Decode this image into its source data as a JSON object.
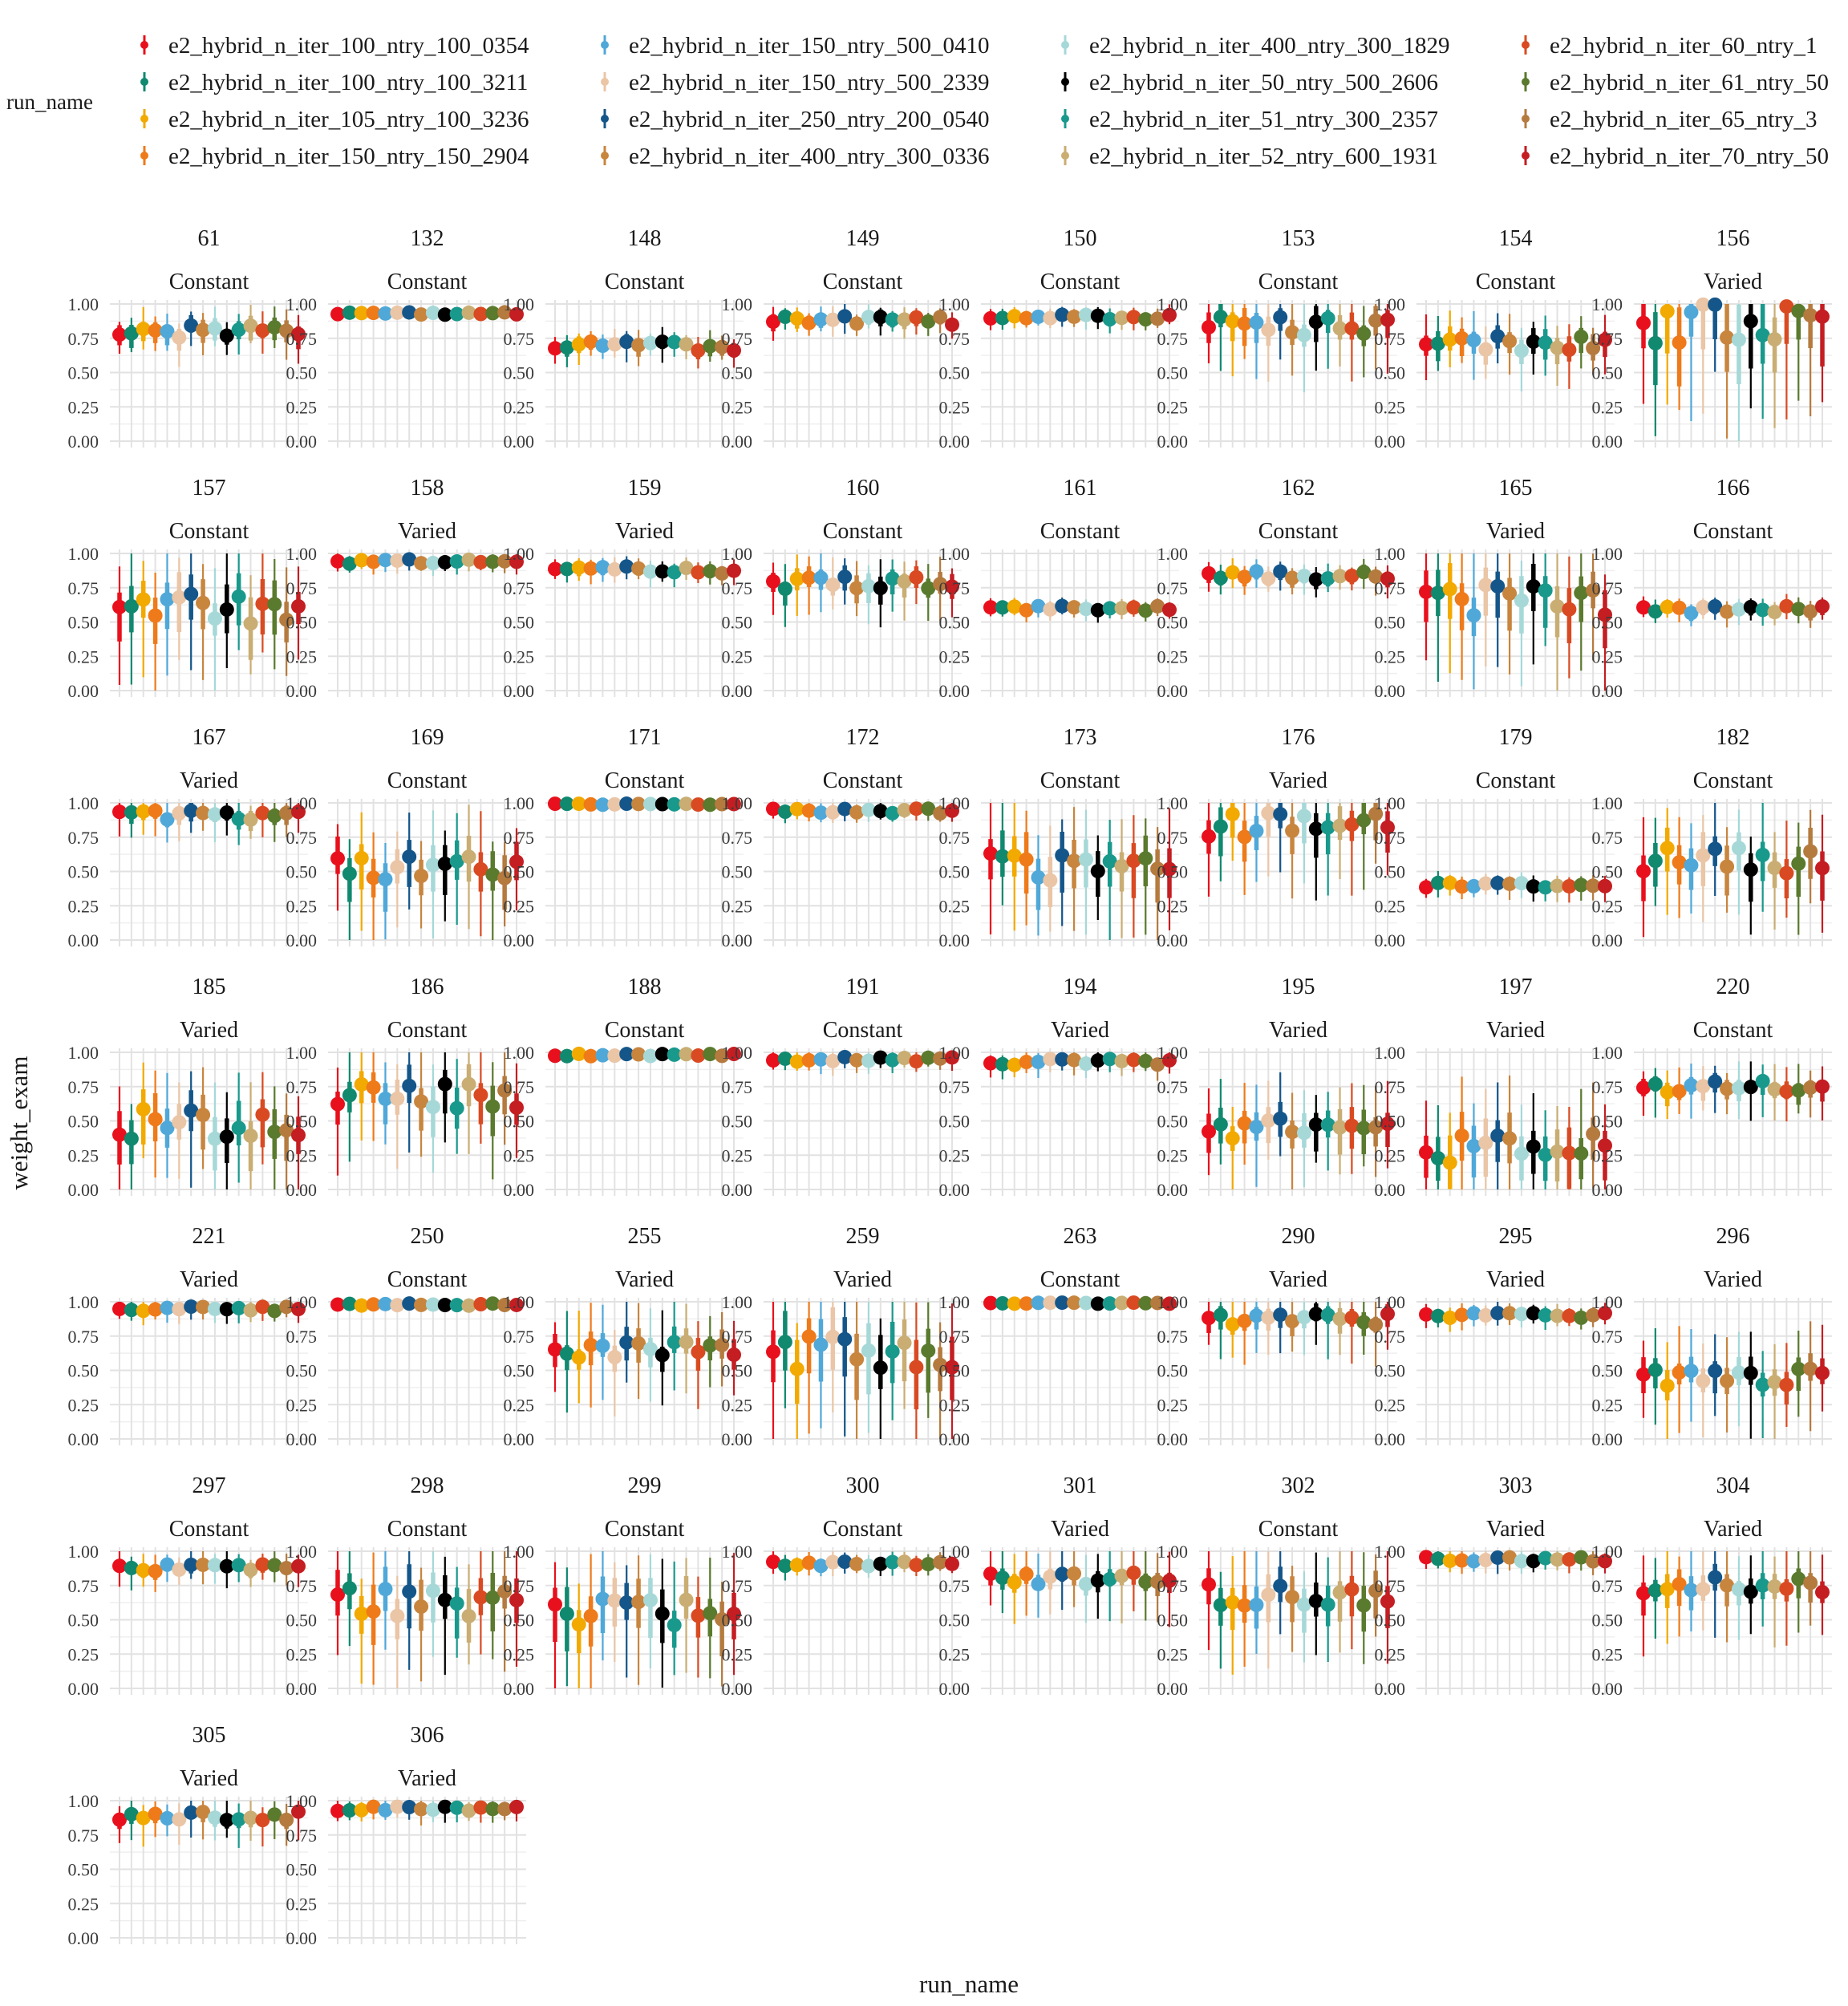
{
  "chart_data": {
    "type": "pointrange",
    "xlabel": "run_name",
    "ylabel": "weight_exam",
    "ylim": [
      0,
      1
    ],
    "yticks": [
      "0.00",
      "0.25",
      "0.50",
      "0.75",
      "1.00"
    ],
    "legend": {
      "title": "run_name",
      "placement": "top",
      "entries": [
        {
          "name": "e2_hybrid_n_iter_100_ntry_100_0354",
          "color": "#e8101c"
        },
        {
          "name": "e2_hybrid_n_iter_100_ntry_100_3211",
          "color": "#10896f"
        },
        {
          "name": "e2_hybrid_n_iter_105_ntry_100_3236",
          "color": "#f2a900"
        },
        {
          "name": "e2_hybrid_n_iter_150_ntry_150_2904",
          "color": "#ee7a1a"
        },
        {
          "name": "e2_hybrid_n_iter_150_ntry_500_0410",
          "color": "#4fa8d8"
        },
        {
          "name": "e2_hybrid_n_iter_150_ntry_500_2339",
          "color": "#eac5a6"
        },
        {
          "name": "e2_hybrid_n_iter_250_ntry_200_0540",
          "color": "#14568a"
        },
        {
          "name": "e2_hybrid_n_iter_400_ntry_300_0336",
          "color": "#c8853e"
        },
        {
          "name": "e2_hybrid_n_iter_400_ntry_300_1829",
          "color": "#a6d8d8"
        },
        {
          "name": "e2_hybrid_n_iter_50_ntry_500_2606",
          "color": "#000000"
        },
        {
          "name": "e2_hybrid_n_iter_51_ntry_300_2357",
          "color": "#19998c"
        },
        {
          "name": "e2_hybrid_n_iter_52_ntry_600_1931",
          "color": "#c9ad72"
        },
        {
          "name": "e2_hybrid_n_iter_60_ntry_1",
          "color": "#d94a22"
        },
        {
          "name": "e2_hybrid_n_iter_61_ntry_50",
          "color": "#5a7a2e"
        },
        {
          "name": "e2_hybrid_n_iter_65_ntry_3",
          "color": "#b57a3e"
        },
        {
          "name": "e2_hybrid_n_iter_70_ntry_50",
          "color": "#c41d22"
        }
      ]
    },
    "panels": [
      {
        "id": "61",
        "cond": "Constant",
        "m": 0.8,
        "w": 0.1,
        "l": 0.18
      },
      {
        "id": "132",
        "cond": "Constant",
        "m": 0.93,
        "w": 0.02,
        "l": 0.03
      },
      {
        "id": "148",
        "cond": "Constant",
        "m": 0.69,
        "w": 0.08,
        "l": 0.13
      },
      {
        "id": "149",
        "cond": "Constant",
        "m": 0.88,
        "w": 0.07,
        "l": 0.12
      },
      {
        "id": "150",
        "cond": "Constant",
        "m": 0.9,
        "w": 0.05,
        "l": 0.09
      },
      {
        "id": "153",
        "cond": "Constant",
        "m": 0.84,
        "w": 0.15,
        "l": 0.35
      },
      {
        "id": "154",
        "cond": "Constant",
        "m": 0.71,
        "w": 0.13,
        "l": 0.25
      },
      {
        "id": "156",
        "cond": "Varied",
        "m": 0.86,
        "w": 0.35,
        "l": 0.7
      },
      {
        "id": "157",
        "cond": "Constant",
        "m": 0.6,
        "w": 0.25,
        "l": 0.5
      },
      {
        "id": "158",
        "cond": "Varied",
        "m": 0.94,
        "w": 0.04,
        "l": 0.08
      },
      {
        "id": "159",
        "cond": "Varied",
        "m": 0.88,
        "w": 0.06,
        "l": 0.1
      },
      {
        "id": "160",
        "cond": "Constant",
        "m": 0.78,
        "w": 0.12,
        "l": 0.24
      },
      {
        "id": "161",
        "cond": "Constant",
        "m": 0.6,
        "w": 0.04,
        "l": 0.08
      },
      {
        "id": "162",
        "cond": "Constant",
        "m": 0.84,
        "w": 0.07,
        "l": 0.12
      },
      {
        "id": "165",
        "cond": "Varied",
        "m": 0.66,
        "w": 0.25,
        "l": 0.55
      },
      {
        "id": "166",
        "cond": "Constant",
        "m": 0.59,
        "w": 0.06,
        "l": 0.1
      },
      {
        "id": "167",
        "cond": "Varied",
        "m": 0.91,
        "w": 0.08,
        "l": 0.18
      },
      {
        "id": "169",
        "cond": "Constant",
        "m": 0.52,
        "w": 0.22,
        "l": 0.48
      },
      {
        "id": "171",
        "cond": "Constant",
        "m": 0.99,
        "w": 0.01,
        "l": 0.03
      },
      {
        "id": "172",
        "cond": "Constant",
        "m": 0.94,
        "w": 0.04,
        "l": 0.08
      },
      {
        "id": "173",
        "cond": "Constant",
        "m": 0.52,
        "w": 0.25,
        "l": 0.5
      },
      {
        "id": "176",
        "cond": "Varied",
        "m": 0.84,
        "w": 0.2,
        "l": 0.45
      },
      {
        "id": "179",
        "cond": "Constant",
        "m": 0.4,
        "w": 0.04,
        "l": 0.1
      },
      {
        "id": "182",
        "cond": "Constant",
        "m": 0.58,
        "w": 0.22,
        "l": 0.45
      },
      {
        "id": "185",
        "cond": "Varied",
        "m": 0.48,
        "w": 0.25,
        "l": 0.48
      },
      {
        "id": "186",
        "cond": "Constant",
        "m": 0.68,
        "w": 0.2,
        "l": 0.45
      },
      {
        "id": "188",
        "cond": "Constant",
        "m": 0.98,
        "w": 0.02,
        "l": 0.04
      },
      {
        "id": "191",
        "cond": "Constant",
        "m": 0.95,
        "w": 0.04,
        "l": 0.09
      },
      {
        "id": "194",
        "cond": "Varied",
        "m": 0.93,
        "w": 0.05,
        "l": 0.1
      },
      {
        "id": "195",
        "cond": "Varied",
        "m": 0.45,
        "w": 0.18,
        "l": 0.38
      },
      {
        "id": "197",
        "cond": "Varied",
        "m": 0.3,
        "w": 0.25,
        "l": 0.55
      },
      {
        "id": "220",
        "cond": "Constant",
        "m": 0.75,
        "w": 0.1,
        "l": 0.22
      },
      {
        "id": "221",
        "cond": "Varied",
        "m": 0.95,
        "w": 0.04,
        "l": 0.1
      },
      {
        "id": "250",
        "cond": "Constant",
        "m": 0.98,
        "w": 0.02,
        "l": 0.04
      },
      {
        "id": "255",
        "cond": "Varied",
        "m": 0.65,
        "w": 0.15,
        "l": 0.38
      },
      {
        "id": "259",
        "cond": "Varied",
        "m": 0.62,
        "w": 0.3,
        "l": 0.6
      },
      {
        "id": "263",
        "cond": "Constant",
        "m": 0.99,
        "w": 0.01,
        "l": 0.03
      },
      {
        "id": "290",
        "cond": "Varied",
        "m": 0.87,
        "w": 0.1,
        "l": 0.28
      },
      {
        "id": "295",
        "cond": "Varied",
        "m": 0.9,
        "w": 0.05,
        "l": 0.1
      },
      {
        "id": "296",
        "cond": "Varied",
        "m": 0.44,
        "w": 0.16,
        "l": 0.4
      },
      {
        "id": "297",
        "cond": "Constant",
        "m": 0.88,
        "w": 0.06,
        "l": 0.14
      },
      {
        "id": "298",
        "cond": "Constant",
        "m": 0.62,
        "w": 0.25,
        "l": 0.5
      },
      {
        "id": "299",
        "cond": "Constant",
        "m": 0.54,
        "w": 0.25,
        "l": 0.52
      },
      {
        "id": "300",
        "cond": "Constant",
        "m": 0.91,
        "w": 0.04,
        "l": 0.09
      },
      {
        "id": "301",
        "cond": "Varied",
        "m": 0.8,
        "w": 0.1,
        "l": 0.3
      },
      {
        "id": "302",
        "cond": "Constant",
        "m": 0.68,
        "w": 0.2,
        "l": 0.45
      },
      {
        "id": "303",
        "cond": "Varied",
        "m": 0.94,
        "w": 0.04,
        "l": 0.1
      },
      {
        "id": "304",
        "cond": "Varied",
        "m": 0.76,
        "w": 0.15,
        "l": 0.4
      },
      {
        "id": "305",
        "cond": "Varied",
        "m": 0.89,
        "w": 0.07,
        "l": 0.18
      },
      {
        "id": "306",
        "cond": "Varied",
        "m": 0.94,
        "w": 0.04,
        "l": 0.1
      }
    ]
  }
}
